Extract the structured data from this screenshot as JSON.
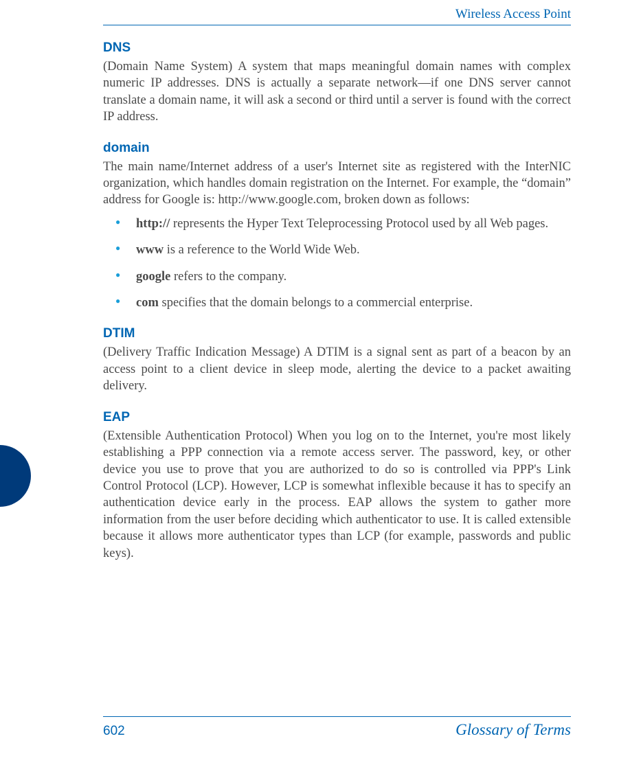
{
  "header": {
    "title": "Wireless Access Point"
  },
  "colors": {
    "heading": "#0066b3",
    "rule": "#0066b3",
    "bullet": "#1a9ed9",
    "body_text": "#4a4a4a",
    "side_tab": "#003a7a",
    "background": "#ffffff"
  },
  "typography": {
    "body_font": "Palatino Linotype, Book Antiqua, Palatino, Georgia, serif",
    "heading_font": "Arial, Helvetica, sans-serif",
    "footer_section_font": "Brush Script MT, cursive",
    "body_size_pt": 14,
    "heading_size_pt": 14,
    "heading_weight": "bold"
  },
  "entries": {
    "dns": {
      "title": "DNS",
      "body": "(Domain Name System) A system that maps meaningful domain names with complex numeric IP addresses. DNS is actually a separate network—if one DNS server cannot translate a domain name, it will ask a second or third until a server is found with the correct IP address."
    },
    "domain": {
      "title": "domain",
      "intro": "The main name/Internet address of a user's Internet site as registered with the InterNIC organization, which handles domain registration on the Internet. For example, the “domain” address for Google is: http://www.google.com, broken down as follows:",
      "items": [
        {
          "bold": "http://",
          "rest": " represents the Hyper Text Teleprocessing Protocol used by all Web pages."
        },
        {
          "bold": "www",
          "rest": " is a reference to the World Wide Web."
        },
        {
          "bold": "google",
          "rest": " refers to the company."
        },
        {
          "bold": "com",
          "rest": " specifies that the domain belongs to a commercial enterprise."
        }
      ]
    },
    "dtim": {
      "title": "DTIM",
      "body": "(Delivery Traffic Indication Message) A DTIM is a signal sent as part of a beacon by an access point to a client device in sleep mode, alerting the device to a packet awaiting delivery."
    },
    "eap": {
      "title": "EAP",
      "body": "(Extensible Authentication Protocol) When you log on to the Internet, you're most likely establishing a PPP connection via a remote access server. The password, key, or other device you use to prove that you are authorized to do so is controlled via PPP's Link Control Protocol (LCP). However, LCP is somewhat inflexible because it has to specify an authentication device early in the process. EAP allows the system to gather more information from the user before deciding which authenticator to use. It is called extensible because it allows more authenticator types than LCP (for example, passwords and public keys)."
    }
  },
  "footer": {
    "page_number": "602",
    "section": "Glossary of Terms"
  }
}
